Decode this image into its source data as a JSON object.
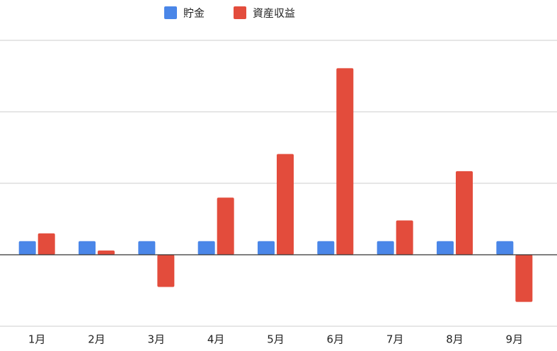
{
  "chart_data": {
    "type": "bar",
    "categories": [
      "1月",
      "2月",
      "3月",
      "4月",
      "5月",
      "6月",
      "7月",
      "8月",
      "9月"
    ],
    "series": [
      {
        "name": "貯金",
        "color": "#4a86e8",
        "values": [
          0.19,
          0.19,
          0.19,
          0.19,
          0.19,
          0.19,
          0.19,
          0.19,
          0.19
        ]
      },
      {
        "name": "資産収益",
        "color": "#e34c3c",
        "values": [
          0.3,
          0.06,
          -0.45,
          0.8,
          1.41,
          2.61,
          0.48,
          1.17,
          -0.66
        ]
      }
    ],
    "ylim": [
      -1,
      3
    ],
    "yticks": [
      -1,
      0,
      1,
      2,
      3
    ],
    "grid": true,
    "legend": "top"
  }
}
